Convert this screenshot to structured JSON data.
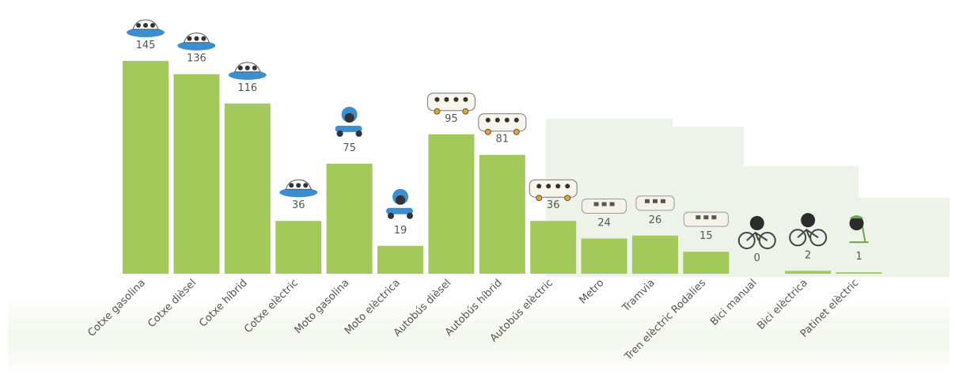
{
  "chart_data": {
    "type": "bar",
    "categories": [
      "Cotxe gasolina",
      "Cotxe dièsel",
      "Cotxe híbrid",
      "Cotxe elèctric",
      "Moto gasolina",
      "Moto elèctrica",
      "Autobús dièsel",
      "Autobús híbrid",
      "Autobús elèctric",
      "Metro",
      "Tramvia",
      "Tren elèctric Rodalies",
      "Bici manual",
      "Bici elèctrica",
      "Patinet elèctric"
    ],
    "values": [
      145,
      136,
      116,
      36,
      75,
      19,
      95,
      81,
      36,
      24,
      26,
      15,
      0,
      2,
      1
    ],
    "color": "#a3c95b"
  }
}
